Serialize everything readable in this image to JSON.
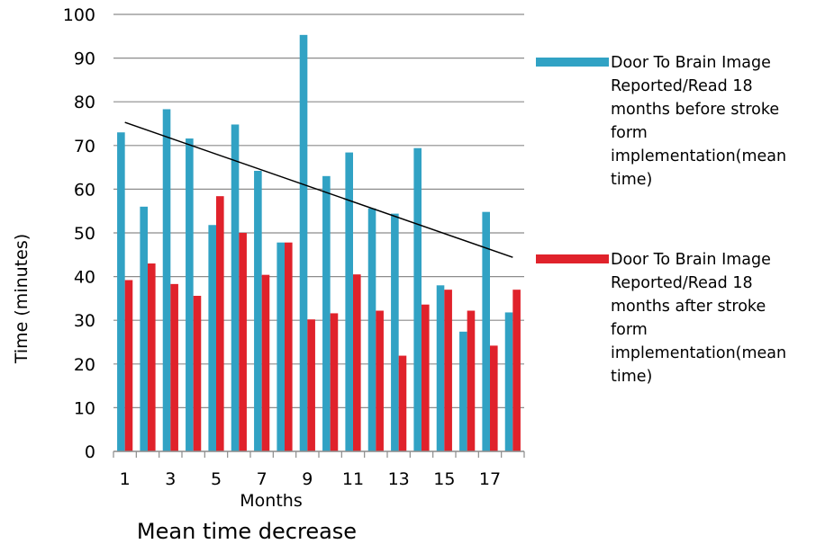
{
  "chart_data": {
    "type": "bar",
    "xlabel": "Months",
    "ylabel": "Time (minutes)",
    "caption": "Mean time decrease",
    "ylim": [
      0,
      100
    ],
    "y_ticks": [
      0,
      10,
      20,
      30,
      40,
      50,
      60,
      70,
      80,
      90,
      100
    ],
    "categories": [
      1,
      2,
      3,
      4,
      5,
      6,
      7,
      8,
      9,
      10,
      11,
      12,
      13,
      14,
      15,
      16,
      17,
      18
    ],
    "x_tick_labels": [
      "1",
      "3",
      "5",
      "7",
      "9",
      "11",
      "13",
      "15",
      "17"
    ],
    "series": [
      {
        "name_lines": [
          "Door To Brain Image",
          "Reported/Read 18",
          "months before stroke",
          "form",
          "implementation(mean",
          "time)"
        ],
        "color": "#31A2C4",
        "values": [
          73,
          56,
          78.3,
          71.6,
          51.8,
          74.8,
          64.2,
          47.8,
          95.3,
          63,
          68.4,
          55.6,
          54.4,
          69.4,
          38,
          27.4,
          54.8,
          31.8
        ]
      },
      {
        "name_lines": [
          "Door To Brain Image",
          "Reported/Read 18",
          "months after stroke",
          "form",
          "implementation(mean",
          "time)"
        ],
        "color": "#E0222B",
        "values": [
          39.2,
          43,
          38.3,
          35.6,
          58.4,
          50,
          40.4,
          47.8,
          30.2,
          31.6,
          40.5,
          32.2,
          21.9,
          33.6,
          37,
          32.2,
          24.2,
          37
        ]
      }
    ],
    "trendline": {
      "x_start": 1,
      "y_start": 75.3,
      "x_end": 18,
      "y_end": 44.4,
      "color": "#000000"
    },
    "legend_position": "right"
  }
}
